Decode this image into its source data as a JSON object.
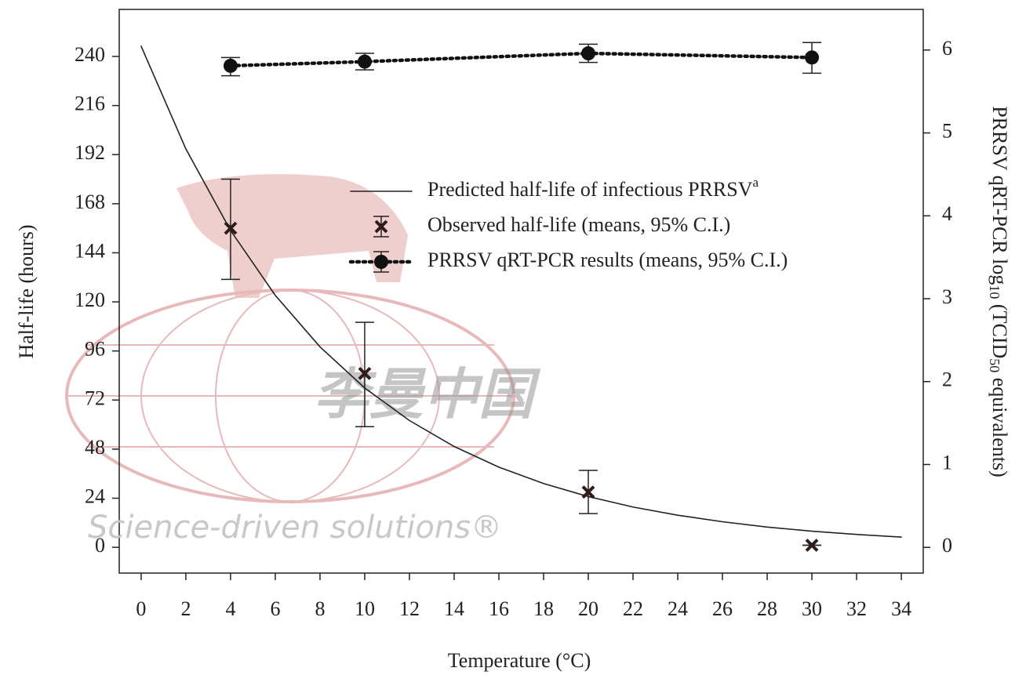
{
  "chart_data": {
    "type": "line",
    "xlabel": "Temperature (°C)",
    "ylabel": "Half-life (hours)",
    "y2label_parts": [
      "PRRSV qRT-PCR log",
      "10",
      " (TCID",
      "50",
      " equivalents)"
    ],
    "xlim": [
      -0.98,
      34.98
    ],
    "xticks": [
      0,
      2,
      4,
      6,
      8,
      10,
      12,
      14,
      16,
      18,
      20,
      22,
      24,
      26,
      28,
      30,
      32,
      34
    ],
    "ylim": [
      -12.6,
      263
    ],
    "yticks": [
      0,
      24,
      48,
      72,
      96,
      120,
      144,
      168,
      192,
      216,
      240
    ],
    "y2lim": [
      -0.31,
      6.49
    ],
    "y2ticks": [
      0,
      1,
      2,
      3,
      4,
      5,
      6
    ],
    "grid": false,
    "watermark": [
      "李曼中国",
      "Science-driven solutions®"
    ],
    "series": [
      {
        "name": "Predicted half-life of infectious PRRSV",
        "name_superscript": "a",
        "style": "solid",
        "marker": "none",
        "color": "#222222",
        "x": [
          0,
          2,
          4,
          6,
          8,
          10,
          12,
          14,
          16,
          18,
          20,
          22,
          24,
          26,
          28,
          30,
          32,
          34
        ],
        "values": [
          245,
          194.8,
          154.9,
          123.2,
          98.0,
          77.9,
          62.0,
          49.3,
          39.2,
          31.2,
          24.8,
          19.7,
          15.7,
          12.5,
          9.9,
          7.9,
          6.3,
          5.0
        ]
      },
      {
        "name": "Observed half-life (means, 95% C.I.)",
        "style": "none",
        "marker": "x",
        "color": "#2e1c1c",
        "x": [
          4,
          10,
          20,
          30
        ],
        "values": [
          156,
          85,
          27,
          1
        ],
        "lower": [
          131,
          59,
          16.5,
          1
        ],
        "upper": [
          180,
          110,
          37.6,
          1
        ]
      },
      {
        "name": "PRRSV qRT-PCR results (means, 95% C.I.)",
        "style": "dotted",
        "marker": "circle",
        "color": "#111111",
        "axis": "y2",
        "x": [
          4,
          10,
          20,
          30
        ],
        "values": [
          5.81,
          5.86,
          5.96,
          5.91
        ],
        "lower": [
          5.69,
          5.76,
          5.85,
          5.72
        ],
        "upper": [
          5.91,
          5.96,
          6.07,
          6.09
        ]
      }
    ]
  }
}
